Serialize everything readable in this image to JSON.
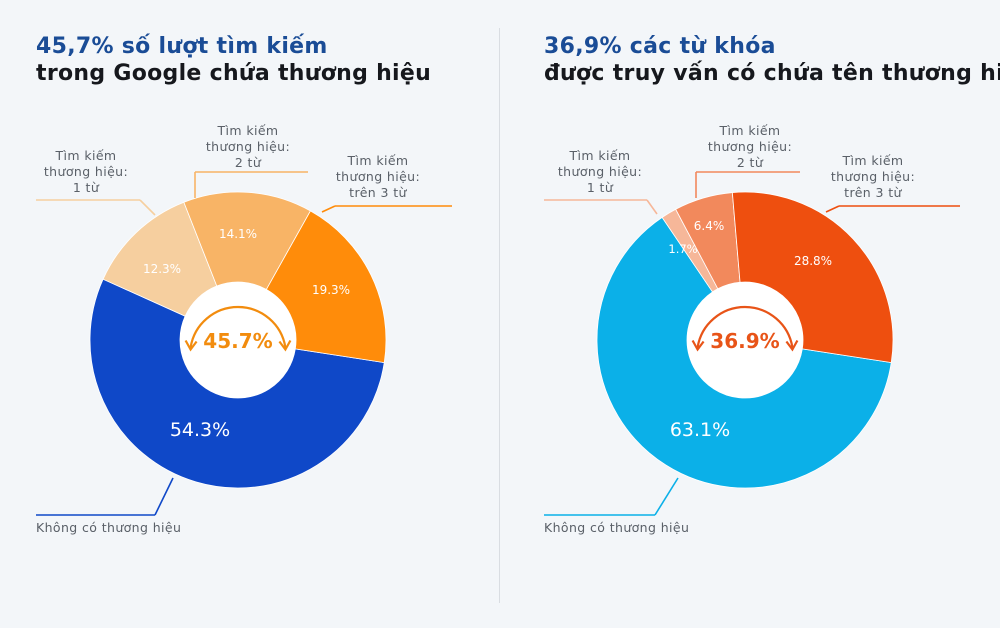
{
  "chart_data": [
    {
      "type": "pie",
      "title_line1": "45,7% số lượt tìm kiếm",
      "title_line2": "trong Google chứa thương hiệu",
      "accent": "#1a4c96",
      "center_label": "45.7%",
      "center_color": "#f28c0e",
      "slices": [
        {
          "name": [
            "Không có thương hiệu"
          ],
          "value": 54.3,
          "label": "54.3%",
          "color": "#0f48c8",
          "label_color": "#ffffff"
        },
        {
          "name": [
            "Tìm kiếm",
            "thương hiệu:",
            "1 từ"
          ],
          "value": 12.3,
          "label": "12.3%",
          "color": "#f6cf9f",
          "label_color": "#ffffff"
        },
        {
          "name": [
            "Tìm kiếm",
            "thương hiệu:",
            "2 từ"
          ],
          "value": 14.1,
          "label": "14.1%",
          "color": "#f8b466",
          "label_color": "#ffffff"
        },
        {
          "name": [
            "Tìm kiếm",
            "thương hiệu:",
            "trên 3 từ"
          ],
          "value": 19.3,
          "label": "19.3%",
          "color": "#ff8c0a",
          "label_color": "#ffffff"
        }
      ]
    },
    {
      "type": "pie",
      "title_line1": "36,9% các từ khóa",
      "title_line2": "được truy vấn có chứa tên thương hiệu",
      "accent": "#1a4c96",
      "center_label": "36.9%",
      "center_color": "#e85418",
      "slices": [
        {
          "name": [
            "Không có thương hiệu"
          ],
          "value": 63.1,
          "label": "63.1%",
          "color": "#0bb0e8",
          "label_color": "#ffffff"
        },
        {
          "name": [
            "Tìm kiếm",
            "thương hiệu:",
            "1 từ"
          ],
          "value": 1.7,
          "label": "1.7%",
          "color": "#f6b799",
          "label_color": "#ffffff"
        },
        {
          "name": [
            "Tìm kiếm",
            "thương hiệu:",
            "2 từ"
          ],
          "value": 6.4,
          "label": "6.4%",
          "color": "#f2895c",
          "label_color": "#ffffff"
        },
        {
          "name": [
            "Tìm kiếm",
            "thương hiệu:",
            "trên 3 từ"
          ],
          "value": 28.8,
          "label": "28.8%",
          "color": "#ee4f0f",
          "label_color": "#ffffff"
        }
      ]
    }
  ]
}
